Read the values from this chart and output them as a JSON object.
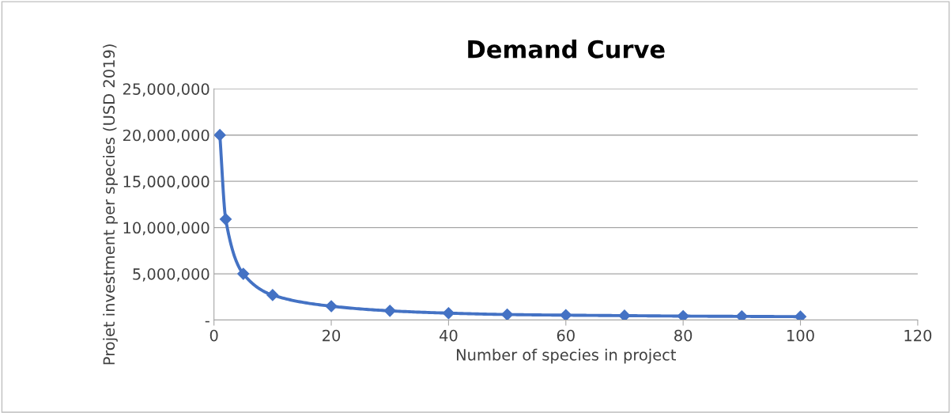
{
  "chart_data": {
    "type": "line",
    "title": "Demand Curve",
    "xlabel": "Number of species in project",
    "ylabel": "Projet investment per species (USD 2019)",
    "x": [
      1,
      2,
      5,
      10,
      20,
      30,
      40,
      50,
      60,
      70,
      80,
      90,
      100
    ],
    "series": [
      {
        "color": "#4472c4",
        "values": [
          20000000,
          10900000,
          5000000,
          2700000,
          1500000,
          1000000,
          750000,
          600000,
          530000,
          480000,
          430000,
          400000,
          370000
        ]
      }
    ],
    "xlim": [
      0,
      120
    ],
    "xticks": [
      0,
      20,
      40,
      60,
      80,
      100,
      120
    ],
    "ylim": [
      0,
      25000000
    ],
    "yticks": [
      {
        "value": 0,
        "label": "-"
      },
      {
        "value": 5000000,
        "label": "5,000,000"
      },
      {
        "value": 10000000,
        "label": "10,000,000"
      },
      {
        "value": 15000000,
        "label": "15,000,000"
      },
      {
        "value": 20000000,
        "label": "20,000,000"
      },
      {
        "value": 25000000,
        "label": "25,000,000"
      }
    ],
    "grid": "y",
    "marker": "diamond",
    "line_style": "solid",
    "legend": false
  }
}
